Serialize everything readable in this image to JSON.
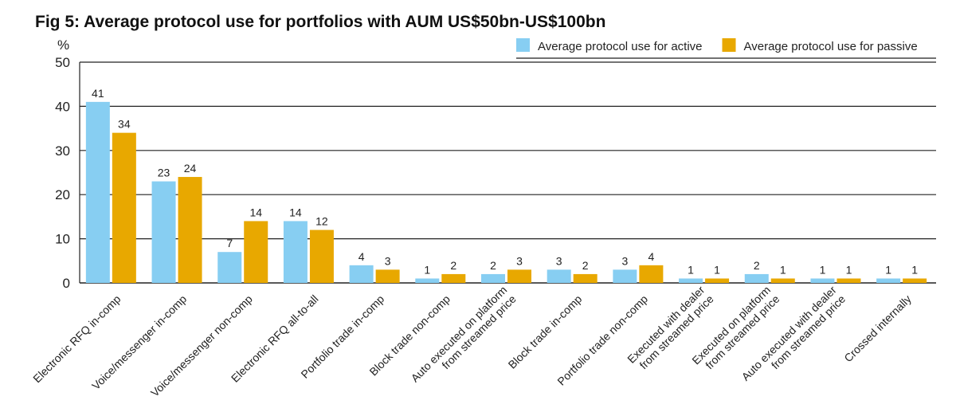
{
  "chart_data": {
    "type": "bar",
    "title": "Fig 5: Average protocol use for portfolios with AUM US$50bn-US$100bn",
    "ylabel": "%",
    "xlabel": "",
    "ylim": [
      0,
      50
    ],
    "yticks": [
      0,
      10,
      20,
      30,
      40,
      50
    ],
    "grid": true,
    "legend_position": "top-right",
    "categories": [
      [
        "Electronic RFQ in-comp"
      ],
      [
        "Voice/messenger in-comp"
      ],
      [
        "Voice/messenger non-comp"
      ],
      [
        "Electronic RFQ all-to-all"
      ],
      [
        "Portfolio trade in-comp"
      ],
      [
        "Block trade non-comp"
      ],
      [
        "Auto executed on platform",
        "from streamed price"
      ],
      [
        "Block trade in-comp"
      ],
      [
        "Portfolio trade non-comp"
      ],
      [
        "Executed with dealer",
        "from streamed price"
      ],
      [
        "Executed on platform",
        "from streamed price"
      ],
      [
        "Auto executed with dealer",
        "from streamed price"
      ],
      [
        "Crossed internally"
      ]
    ],
    "series": [
      {
        "name": "Average protocol use for active",
        "color": "#87cef2",
        "values": [
          41,
          23,
          7,
          14,
          4,
          1,
          2,
          3,
          3,
          1,
          2,
          1,
          1
        ]
      },
      {
        "name": "Average protocol use for passive",
        "color": "#e8a800",
        "values": [
          34,
          24,
          14,
          12,
          3,
          2,
          3,
          2,
          4,
          1,
          1,
          1,
          1
        ]
      }
    ]
  }
}
